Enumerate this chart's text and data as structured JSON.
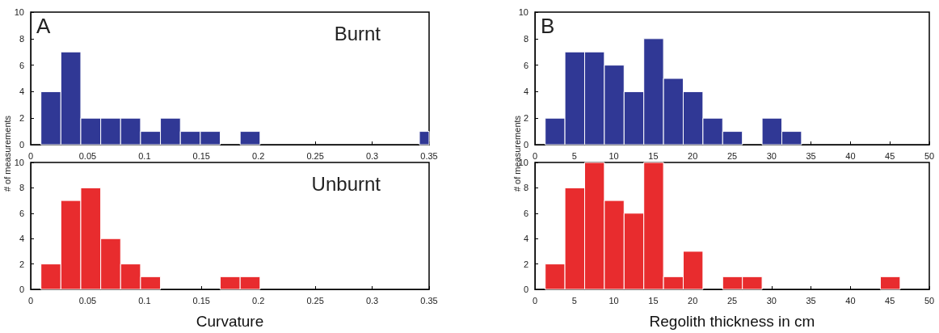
{
  "chart_data": [
    {
      "type": "histogram",
      "ylabel": "# of measurements",
      "annotations": [
        "A",
        "Burnt"
      ],
      "color": "#303895",
      "bins": [
        0.009,
        0.0265,
        0.044,
        0.0615,
        0.079,
        0.0965,
        0.114,
        0.1315,
        0.149,
        0.1665,
        0.184,
        0.2015,
        0.3415,
        0.35
      ],
      "values": [
        4,
        7,
        2,
        2,
        2,
        1,
        2,
        1,
        1,
        0,
        1,
        0,
        1
      ],
      "xlim": [
        0,
        0.35
      ],
      "xticks": [
        0,
        0.05,
        0.1,
        0.15,
        0.2,
        0.25,
        0.3,
        0.35
      ],
      "ylim": [
        0,
        10
      ],
      "yticks": [
        0,
        2,
        4,
        6,
        8,
        10
      ],
      "grid": false
    },
    {
      "type": "histogram",
      "ylabel": "# of measurements",
      "annotations": [
        "B"
      ],
      "color": "#303895",
      "bins": [
        1.3,
        3.8,
        6.3,
        8.8,
        11.3,
        13.8,
        16.3,
        18.8,
        21.3,
        23.8,
        26.3,
        28.8,
        31.3,
        33.8
      ],
      "values": [
        2,
        7,
        7,
        6,
        4,
        8,
        5,
        4,
        2,
        1,
        0,
        2,
        1
      ],
      "xlim": [
        0,
        50
      ],
      "xticks": [
        0,
        5,
        10,
        15,
        20,
        25,
        30,
        35,
        40,
        45,
        50
      ],
      "ylim": [
        0,
        10
      ],
      "yticks": [
        0,
        2,
        4,
        6,
        8,
        10
      ],
      "grid": false
    },
    {
      "type": "histogram",
      "xlabel": "Curvature",
      "annotations": [
        "Unburnt"
      ],
      "color": "#e82c2e",
      "bins": [
        0.009,
        0.0265,
        0.044,
        0.0615,
        0.079,
        0.0965,
        0.114,
        0.1665,
        0.184,
        0.2015
      ],
      "values": [
        2,
        7,
        8,
        4,
        2,
        1,
        0,
        1,
        1
      ],
      "xlim": [
        0,
        0.35
      ],
      "xticks": [
        0,
        0.05,
        0.1,
        0.15,
        0.2,
        0.25,
        0.3,
        0.35
      ],
      "ylim": [
        0,
        10
      ],
      "yticks": [
        0,
        2,
        4,
        6,
        8,
        10
      ],
      "grid": false
    },
    {
      "type": "histogram",
      "xlabel": "Regolith thickness in cm",
      "color": "#e82c2e",
      "bins": [
        1.3,
        3.8,
        6.3,
        8.8,
        11.3,
        13.8,
        16.3,
        18.8,
        21.3,
        23.8,
        26.3,
        28.8,
        43.8,
        46.3
      ],
      "values": [
        2,
        8,
        10,
        7,
        6,
        10,
        1,
        3,
        0,
        1,
        1,
        0,
        1
      ],
      "xlim": [
        0,
        50
      ],
      "xticks": [
        0,
        5,
        10,
        15,
        20,
        25,
        30,
        35,
        40,
        45,
        50
      ],
      "ylim": [
        0,
        10
      ],
      "yticks": [
        0,
        2,
        4,
        6,
        8,
        10
      ],
      "grid": false
    }
  ]
}
